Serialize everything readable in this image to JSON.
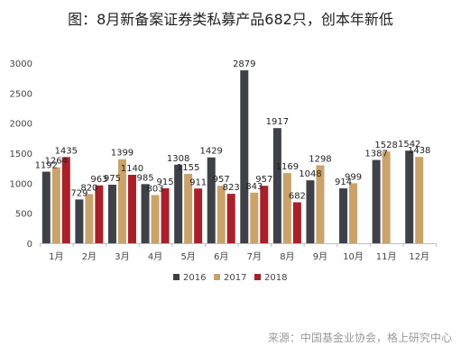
{
  "chart_data": {
    "type": "bar",
    "title": "图：8月新备案证券类私募产品682只，创本年新低",
    "categories": [
      "1月",
      "2月",
      "3月",
      "4月",
      "5月",
      "6月",
      "7月",
      "8月",
      "9月",
      "10月",
      "11月",
      "12月"
    ],
    "series": [
      {
        "name": "2016",
        "color": "#3f4149",
        "values": [
          1192,
          729,
          975,
          985,
          1308,
          1429,
          2879,
          1917,
          1048,
          914,
          1387,
          1542
        ]
      },
      {
        "name": "2017",
        "color": "#c9a36a",
        "values": [
          1264,
          820,
          1399,
          803,
          1155,
          957,
          843,
          1169,
          1298,
          999,
          1528,
          1438
        ]
      },
      {
        "name": "2018",
        "color": "#a8202a",
        "values": [
          1435,
          963,
          1140,
          915,
          911,
          823,
          957,
          682,
          null,
          null,
          null,
          null
        ]
      }
    ],
    "yticks": [
      0,
      500,
      1000,
      1500,
      2000,
      2500,
      3000
    ],
    "ylim": [
      0,
      3000
    ],
    "grid": false,
    "legend": "bottom",
    "xlabel": "",
    "ylabel": ""
  },
  "source": "来源：中国基金业协会，格上研究中心"
}
